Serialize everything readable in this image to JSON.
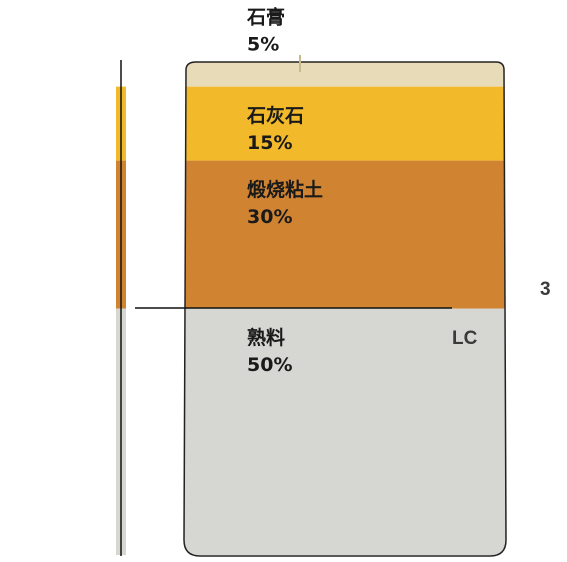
{
  "chart_data": {
    "type": "stacked-bar",
    "categories": [
      "石膏",
      "石灰石",
      "煅烧粘土",
      "熟料"
    ],
    "values": [
      5,
      15,
      30,
      50
    ],
    "value_labels": [
      "5%",
      "15%",
      "30%",
      "50%"
    ],
    "colors": [
      "#e8dcb8",
      "#f2b92b",
      "#d08432",
      "#d6d6d3"
    ],
    "logo": "LC",
    "logo_superscript": "3"
  }
}
